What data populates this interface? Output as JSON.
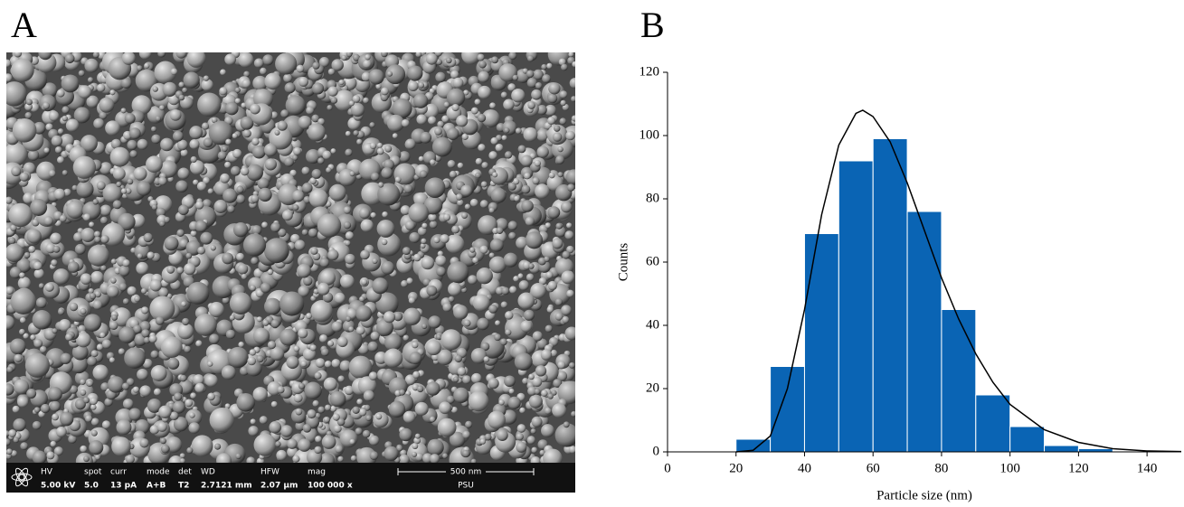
{
  "panel_labels": [
    "A",
    "B"
  ],
  "sem_info": {
    "fields": [
      {
        "label": "HV",
        "value": "5.00 kV"
      },
      {
        "label": "spot",
        "value": "5.0"
      },
      {
        "label": "curr",
        "value": "13 pA"
      },
      {
        "label": "mode",
        "value": "A+B"
      },
      {
        "label": "det",
        "value": "T2"
      },
      {
        "label": "WD",
        "value": "2.7121 mm"
      },
      {
        "label": "HFW",
        "value": "2.07 µm"
      },
      {
        "label": "mag",
        "value": "100 000 x"
      }
    ],
    "scale_bar": "500 nm",
    "site": "PSU"
  },
  "chart_data": {
    "type": "histogram",
    "x_label": "Particle size (nm)",
    "y_label": "Counts",
    "bins": [
      20,
      30,
      40,
      50,
      60,
      70,
      80,
      90,
      100,
      110,
      120,
      130
    ],
    "counts": [
      4,
      27,
      69,
      92,
      99,
      76,
      45,
      18,
      8,
      2,
      1
    ],
    "color": "#0a64b4",
    "fit": {
      "color": "#000000",
      "x": [
        20,
        25,
        30,
        35,
        40,
        45,
        50,
        55,
        57,
        60,
        65,
        70,
        75,
        80,
        85,
        90,
        95,
        100,
        110,
        120,
        130,
        140,
        150
      ],
      "y": [
        0,
        0.5,
        5,
        20,
        45,
        75,
        97,
        107,
        108,
        106,
        98,
        85,
        70,
        55,
        42,
        31,
        22,
        15,
        7,
        3,
        1,
        0.3,
        0.1
      ]
    },
    "xlim": [
      0,
      150
    ],
    "xticks": [
      0,
      20,
      40,
      60,
      80,
      100,
      120,
      140
    ],
    "ylim": [
      0,
      120
    ],
    "yticks": [
      0,
      20,
      40,
      60,
      80,
      100,
      120
    ]
  }
}
